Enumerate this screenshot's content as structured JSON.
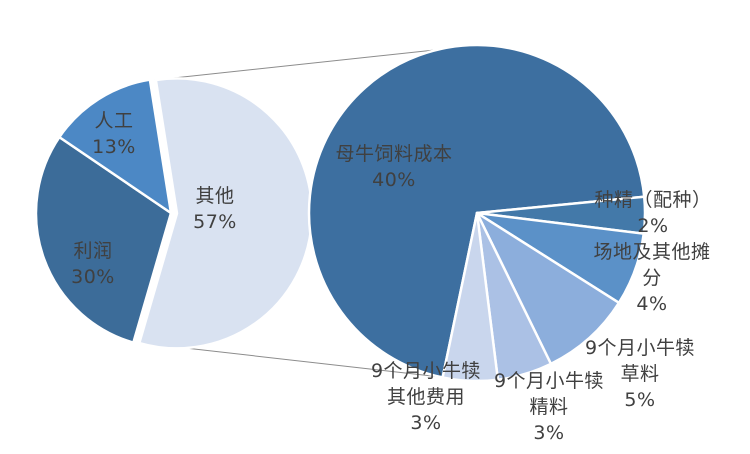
{
  "chart_data": {
    "type": "pie",
    "variant": "pie-of-pie",
    "title": "",
    "background": "#FFFFFF",
    "connector_color": "#8C8C8C",
    "label_color": "#404040",
    "primary": {
      "start_angle_deg": -9,
      "total": 100,
      "slices": [
        {
          "id": "other",
          "label": "其他",
          "pct_text": "57%",
          "value": 57,
          "color": "#D9E2F1",
          "exploded": true
        },
        {
          "id": "profit",
          "label": "利润",
          "pct_text": "30%",
          "value": 30,
          "color": "#3C6C99",
          "exploded": false
        },
        {
          "id": "labor",
          "label": "人工",
          "pct_text": "13%",
          "value": 13,
          "color": "#4C88C5",
          "exploded": false
        }
      ]
    },
    "secondary": {
      "start_angle_deg": 191.8,
      "total": 57,
      "slices": [
        {
          "id": "cow-feed-cost",
          "label": "母牛饲料成本",
          "pct_text": "40%",
          "value": 40,
          "color": "#3D6FA0",
          "exploded": false
        },
        {
          "id": "semen-breeding",
          "label": "种精（配种）",
          "pct_text": "2%",
          "value": 2,
          "color": "#4379A9",
          "exploded": false
        },
        {
          "id": "site-and-allocation",
          "label": "场地及其他摊分",
          "pct_text": "4%",
          "value": 4,
          "color": "#5B91C8",
          "exploded": false
        },
        {
          "id": "calf-forage-9mo",
          "label": "9个月小牛犊草料",
          "pct_text": "5%",
          "value": 5,
          "color": "#8CAEDC",
          "exploded": false
        },
        {
          "id": "calf-concentrate-9mo",
          "label": "9个月小牛犊精料",
          "pct_text": "3%",
          "value": 3,
          "color": "#ABC1E5",
          "exploded": false
        },
        {
          "id": "calf-other-cost-9mo",
          "label": "9个月小牛犊其他费用",
          "pct_text": "3%",
          "value": 3,
          "color": "#C9D6ED",
          "exploded": false
        }
      ]
    }
  }
}
